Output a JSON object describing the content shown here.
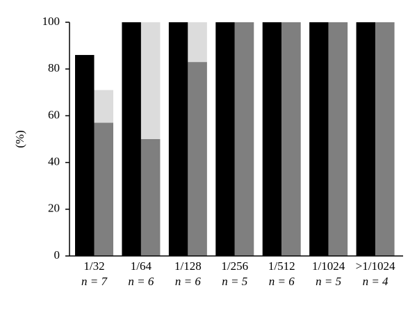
{
  "chart_data": {
    "type": "bar",
    "ylabel": "(%)",
    "categories": [
      "1/32",
      "1/64",
      "1/128",
      "1/256",
      "1/512",
      "1/1024",
      ">1/1024"
    ],
    "category_notes": [
      "n = 7",
      "n = 6",
      "n = 6",
      "n = 5",
      "n = 6",
      "n = 5",
      "n = 4"
    ],
    "series": [
      {
        "color": "#000000",
        "position": "left",
        "values": [
          86,
          100,
          100,
          100,
          100,
          100,
          100
        ]
      },
      {
        "color": "#7f7f7f",
        "position": "right",
        "values": [
          57,
          50,
          83,
          100,
          100,
          100,
          100
        ]
      },
      {
        "color": "#dcdcdc",
        "position": "right",
        "values": [
          14,
          50,
          17,
          0,
          0,
          0,
          0
        ]
      }
    ],
    "ylim": [
      0,
      100
    ],
    "yticks": [
      0,
      20,
      40,
      60,
      80,
      100
    ],
    "grid": false
  }
}
